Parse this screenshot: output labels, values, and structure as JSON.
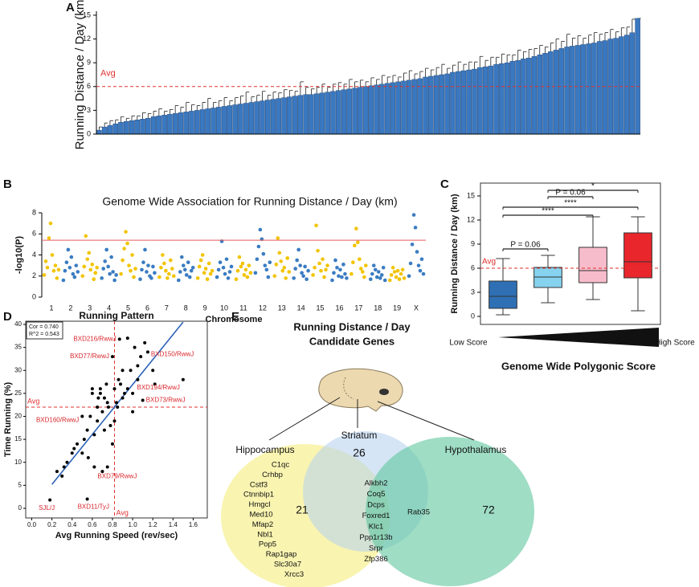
{
  "chart_data": [
    {
      "type": "bar",
      "panel": "A",
      "y_label": "Running Distance / Day (km)",
      "color": "#3a78c0",
      "categories": [
        null,
        null,
        null,
        null,
        null,
        null,
        null,
        null,
        null,
        null,
        null,
        null,
        null,
        null,
        null,
        null,
        null,
        null,
        null,
        null,
        null,
        null,
        null,
        null,
        null,
        null,
        null,
        null,
        null,
        null,
        null,
        null,
        null,
        null,
        null,
        null,
        null,
        null,
        null,
        null,
        null,
        null,
        null,
        null,
        null,
        null,
        null,
        null,
        null,
        null,
        null,
        null,
        null,
        null,
        null,
        null,
        null,
        null,
        null,
        null,
        null,
        null,
        null,
        null,
        null,
        null,
        null,
        null,
        null,
        null,
        null,
        null,
        null,
        null,
        null,
        null,
        null,
        null,
        null,
        null,
        null,
        null,
        null,
        null,
        null,
        null,
        null,
        null,
        null,
        null,
        null,
        null,
        null,
        null,
        null,
        null,
        null,
        null,
        null,
        null
      ],
      "values": [
        0.5,
        0.9,
        1.1,
        1.3,
        1.5,
        1.6,
        1.7,
        1.8,
        1.9,
        2.0,
        2.2,
        2.3,
        2.4,
        2.5,
        2.6,
        2.7,
        2.8,
        2.9,
        3.0,
        3.1,
        3.2,
        3.3,
        3.4,
        3.5,
        3.6,
        3.7,
        3.8,
        3.9,
        4.0,
        4.1,
        4.2,
        4.3,
        4.4,
        4.5,
        4.6,
        4.7,
        4.8,
        4.9,
        5.0,
        5.0,
        5.1,
        5.2,
        5.3,
        5.4,
        5.5,
        5.6,
        5.7,
        5.8,
        5.9,
        6.0,
        6.1,
        6.2,
        6.3,
        6.4,
        6.5,
        6.6,
        6.7,
        6.8,
        6.9,
        7.0,
        7.2,
        7.3,
        7.4,
        7.5,
        7.6,
        7.8,
        7.9,
        8.0,
        8.1,
        8.2,
        8.4,
        8.5,
        8.6,
        8.8,
        8.9,
        9.0,
        9.2,
        9.3,
        9.5,
        9.6,
        9.8,
        10.0,
        10.2,
        10.4,
        10.6,
        10.8,
        11.0,
        11.1,
        11.2,
        11.3,
        11.4,
        11.5,
        11.7,
        11.8,
        12.0,
        12.1,
        12.3,
        12.5,
        12.8,
        14.6
      ],
      "errors": [
        0.4,
        0.5,
        0.6,
        0.5,
        0.7,
        0.4,
        0.6,
        0.5,
        0.8,
        0.6,
        0.7,
        0.9,
        0.5,
        0.6,
        1.0,
        0.7,
        1.2,
        0.8,
        0.6,
        0.9,
        1.3,
        0.7,
        0.8,
        1.1,
        0.6,
        0.9,
        1.0,
        1.4,
        0.7,
        0.8,
        1.2,
        0.6,
        0.9,
        0.7,
        1.0,
        0.8,
        0.6,
        1.7,
        0.9,
        0.7,
        0.8,
        1.1,
        0.6,
        0.9,
        1.0,
        0.7,
        1.2,
        0.8,
        0.9,
        0.6,
        1.0,
        0.7,
        1.1,
        0.8,
        0.9,
        0.6,
        1.0,
        1.2,
        0.7,
        0.9,
        1.1,
        0.8,
        1.0,
        1.3,
        0.7,
        0.9,
        1.2,
        0.8,
        1.0,
        0.9,
        1.4,
        0.8,
        1.1,
        0.9,
        1.2,
        1.0,
        0.8,
        1.3,
        0.9,
        1.1,
        1.0,
        1.2,
        0.8,
        1.1,
        1.4,
        0.9,
        1.6,
        1.0,
        1.2,
        0.8,
        1.1,
        1.3,
        0.9,
        1.0,
        1.2,
        0.8,
        1.1,
        1.0,
        1.7,
        0.0
      ],
      "avg_line": {
        "value": 6,
        "label": "Avg"
      },
      "avg_color": "#e0312f",
      "ylim": [
        0,
        15.5
      ],
      "yticks": [
        0,
        3,
        6,
        9,
        12,
        15
      ]
    },
    {
      "type": "manhattan",
      "panel": "B",
      "title": "Genome Wide Association for Running Distance / Day (km)",
      "x_label": "Chromosome",
      "y_label": "-log10(P)",
      "colors": [
        "#f2c400",
        "#3a7cc2"
      ],
      "categories": [
        "1",
        "2",
        "3",
        "4",
        "5",
        "6",
        "7",
        "8",
        "9",
        "10",
        "11",
        "12",
        "13",
        "14",
        "15",
        "16",
        "17",
        "18",
        "19",
        "X"
      ],
      "values": [
        [
          2.1,
          3.4,
          2.8,
          5.6,
          7.0,
          4.0,
          2.5,
          3.0,
          1.8,
          2.6
        ],
        [
          1.6,
          2.5,
          3.3,
          4.5,
          2.8,
          3.8,
          2.2,
          1.9,
          3.0,
          2.4
        ],
        [
          2.0,
          2.9,
          5.8,
          3.6,
          4.2,
          2.6,
          3.1,
          1.7,
          2.3,
          2.8
        ],
        [
          1.8,
          2.7,
          3.4,
          4.5,
          2.9,
          2.2,
          3.8,
          2.4,
          1.6,
          2.1
        ],
        [
          2.2,
          3.5,
          4.6,
          6.2,
          5.1,
          3.0,
          2.5,
          4.0,
          1.9,
          2.7
        ],
        [
          1.7,
          2.6,
          3.3,
          4.5,
          2.4,
          3.0,
          2.0,
          1.8,
          2.9,
          2.3
        ],
        [
          1.9,
          2.8,
          4.0,
          3.2,
          2.5,
          1.8,
          2.2,
          3.5,
          2.7,
          2.0
        ],
        [
          1.6,
          2.4,
          3.8,
          3.0,
          2.6,
          2.1,
          3.3,
          1.9,
          2.5,
          2.8
        ],
        [
          1.8,
          2.9,
          3.5,
          4.0,
          2.3,
          2.7,
          1.7,
          3.2,
          2.2,
          2.5
        ],
        [
          1.9,
          2.6,
          3.3,
          5.3,
          2.8,
          2.2,
          3.6,
          1.8,
          2.4,
          2.9
        ],
        [
          1.7,
          2.5,
          3.8,
          2.9,
          3.2,
          2.1,
          2.6,
          1.9,
          3.0,
          2.3
        ],
        [
          2.3,
          3.6,
          4.8,
          6.4,
          5.5,
          4.1,
          3.0,
          2.6,
          1.9,
          3.3
        ],
        [
          2.0,
          3.1,
          5.6,
          4.2,
          3.4,
          2.5,
          2.8,
          1.8,
          3.7,
          2.4
        ],
        [
          1.8,
          2.7,
          3.5,
          4.5,
          3.0,
          2.3,
          2.0,
          2.9,
          1.7,
          2.5
        ],
        [
          2.1,
          2.8,
          6.8,
          4.4,
          3.2,
          2.5,
          3.6,
          1.9,
          2.6,
          3.0
        ],
        [
          1.6,
          2.3,
          3.5,
          2.8,
          2.0,
          2.6,
          1.9,
          3.1,
          2.2,
          1.8
        ],
        [
          2.2,
          3.3,
          4.9,
          6.5,
          5.2,
          3.6,
          2.7,
          2.4,
          1.9,
          3.0
        ],
        [
          1.7,
          2.2,
          3.0,
          2.6,
          1.9,
          2.4,
          1.8,
          2.1,
          2.8,
          1.6
        ],
        [
          1.6,
          2.1,
          2.8,
          2.4,
          1.9,
          2.5,
          1.7,
          2.2,
          2.6,
          1.8
        ],
        [
          2.0,
          3.2,
          5.0,
          7.8,
          6.6,
          4.3,
          3.0,
          2.5,
          3.6,
          2.2
        ]
      ],
      "threshold": 5.4,
      "threshold_color": "#e85a5a",
      "ylim": [
        0,
        8
      ],
      "yticks": [
        0,
        2,
        4,
        6,
        8
      ]
    },
    {
      "type": "box",
      "panel": "C",
      "y_label": "Running Distance / Day (km)",
      "categories": [
        null,
        null,
        null,
        null
      ],
      "boxes": [
        {
          "color": "#2f6fb4",
          "min": 0.2,
          "q1": 1.0,
          "median": 2.5,
          "q3": 4.4,
          "max": 7.2
        },
        {
          "color": "#86d3ef",
          "min": 1.7,
          "q1": 3.6,
          "median": 4.9,
          "q3": 6.1,
          "max": 7.6
        },
        {
          "color": "#f7bccb",
          "min": 2.1,
          "q1": 4.2,
          "median": 5.7,
          "q3": 8.6,
          "max": 12.4
        },
        {
          "color": "#e8262c",
          "min": 0.7,
          "q1": 4.8,
          "median": 6.8,
          "q3": 10.4,
          "max": 12.4
        }
      ],
      "comparisons": [
        {
          "groups": [
            1,
            2
          ],
          "label": "P = 0.06"
        },
        {
          "groups": [
            1,
            3
          ],
          "label": "****"
        },
        {
          "groups": [
            1,
            4
          ],
          "label": "****"
        },
        {
          "groups": [
            2,
            3
          ],
          "label": "P = 0.06"
        },
        {
          "groups": [
            2,
            4
          ],
          "label": "*"
        }
      ],
      "avg_line": {
        "value": 6,
        "label": "Avg"
      },
      "avg_color": "#e0312f",
      "low_label": "Low Score",
      "high_label": "High Score",
      "x_label": "Genome Wide Polygonic Score",
      "ylim": [
        -1,
        16.6
      ],
      "yticks": [
        0,
        3,
        6,
        9,
        12,
        15
      ]
    },
    {
      "type": "scatter",
      "panel": "D",
      "title": "Running Pattern",
      "x_label": "Avg Running Speed (rev/sec)",
      "y_label": "Time Running (%)",
      "stats": [
        "Cor = 0.740",
        "R^2 = 0.543"
      ],
      "color": "#000000",
      "fit_color": "#2c62b8",
      "x": [
        0.18,
        0.25,
        0.3,
        0.32,
        0.35,
        0.4,
        0.42,
        0.45,
        0.5,
        0.5,
        0.52,
        0.55,
        0.55,
        0.56,
        0.58,
        0.6,
        0.6,
        0.62,
        0.62,
        0.65,
        0.65,
        0.66,
        0.68,
        0.68,
        0.7,
        0.7,
        0.72,
        0.72,
        0.74,
        0.75,
        0.76,
        0.78,
        0.8,
        0.8,
        0.82,
        0.82,
        0.84,
        0.85,
        0.86,
        0.87,
        0.88,
        0.9,
        0.9,
        0.92,
        0.95,
        0.95,
        0.98,
        1.0,
        1.0,
        1.02,
        1.05,
        1.05,
        1.08,
        1.1,
        1.12,
        1.15,
        1.2,
        1.22,
        1.5,
        0.75
      ],
      "y": [
        1.8,
        8,
        7,
        9,
        10,
        12,
        13,
        14,
        20,
        12,
        15,
        2,
        17,
        11,
        20,
        25,
        26,
        16,
        9,
        22,
        19,
        24,
        25,
        26,
        8,
        21,
        24,
        17,
        27,
        23,
        22,
        18,
        33,
        14,
        19,
        26,
        23,
        22,
        28,
        36.8,
        27,
        30,
        24,
        25,
        37,
        26,
        30,
        21,
        25,
        35,
        28,
        31,
        33,
        23.5,
        36,
        34,
        30,
        27,
        28,
        9
      ],
      "point_labels": [
        "SJL/J",
        null,
        null,
        null,
        null,
        null,
        null,
        null,
        "BXD160/RwwJ",
        null,
        null,
        "BXD11/TyJ",
        null,
        null,
        null,
        null,
        null,
        null,
        null,
        null,
        null,
        null,
        null,
        null,
        "BXD79/RwwJ",
        null,
        null,
        null,
        null,
        null,
        null,
        null,
        "BXD77/RwwJ",
        null,
        null,
        null,
        null,
        null,
        null,
        "BXD216/RwwJ",
        null,
        null,
        null,
        null,
        null,
        null,
        null,
        null,
        null,
        null,
        null,
        null,
        null,
        "BXD73/RwwJ",
        null,
        "BXD150/RwwJ",
        null,
        null,
        "BXD194/RwwJ",
        null
      ],
      "label_color": "#d9262c",
      "fit": {
        "x": [
          0.2,
          1.5
        ],
        "y": [
          5.2,
          40.5
        ]
      },
      "avg_x": {
        "value": 0.82,
        "label": "Avg"
      },
      "avg_y": {
        "value": 22,
        "label": "Avg"
      },
      "avg_color": "#e0312f",
      "xlim": [
        -0.06,
        1.74
      ],
      "ylim": [
        -2.1,
        40.7
      ],
      "xticks": [
        {
          "value": 0,
          "label": "0.0"
        },
        0.2,
        0.4,
        0.6,
        0.8,
        {
          "value": 1,
          "label": "1.0"
        },
        1.2,
        1.4,
        1.6
      ],
      "yticks": [
        0,
        5,
        10,
        15,
        20,
        25,
        30,
        35,
        40
      ]
    },
    {
      "type": "venn",
      "panel": "E",
      "title_lines": [
        "Running Distance / Day",
        "Candidate Genes"
      ],
      "sets": [
        {
          "name": "Hippocampus",
          "color": "#f6ef8f",
          "genes": [
            "C1qc",
            "Crhbp",
            "Cstf3",
            "Ctnnbip1",
            "Hmgcl",
            "Med10",
            "Mfap2",
            "Nbl1",
            "Pop5",
            "Rap1gap",
            "Slc30a7",
            "Xrcc3"
          ]
        },
        {
          "name": "Striatum",
          "color": "#b9d3ef",
          "count": 26
        },
        {
          "name": "Hypothalamus",
          "color": "#5fc79e",
          "count": 72
        }
      ],
      "hippocampus_striatum_count": 21,
      "striatum_hypothalamus_genes": [
        "Rab35"
      ],
      "shared_genes": [
        "Alkbh2",
        "Coq5",
        "Dcps",
        "Foxred1",
        "Klc1",
        "Ppp1r13b",
        "Srpr",
        "Zfp386"
      ]
    }
  ]
}
